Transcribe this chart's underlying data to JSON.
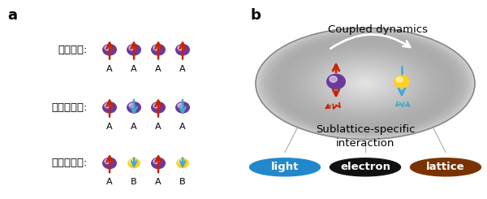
{
  "panel_a_label": "a",
  "panel_b_label": "b",
  "ferromagnet_label": "강자성체:",
  "antiferromagnet_label": "반강자성체:",
  "ferrimagnet_label": "준강자성체:",
  "coupled_dynamics_text": "Coupled dynamics",
  "sublattice_text": "Sublattice-specific\ninteraction",
  "light_text": "light",
  "electron_text": "electron",
  "lattice_text": "lattice",
  "purple_color": "#6B3A9B",
  "yellow_color": "#FFD020",
  "red_color": "#CC2200",
  "blue_color": "#44AACC",
  "light_btn_color": "#2288CC",
  "electron_btn_color": "#111111",
  "lattice_btn_color": "#7A3300",
  "gray_ellipse": "#AAAAAA"
}
